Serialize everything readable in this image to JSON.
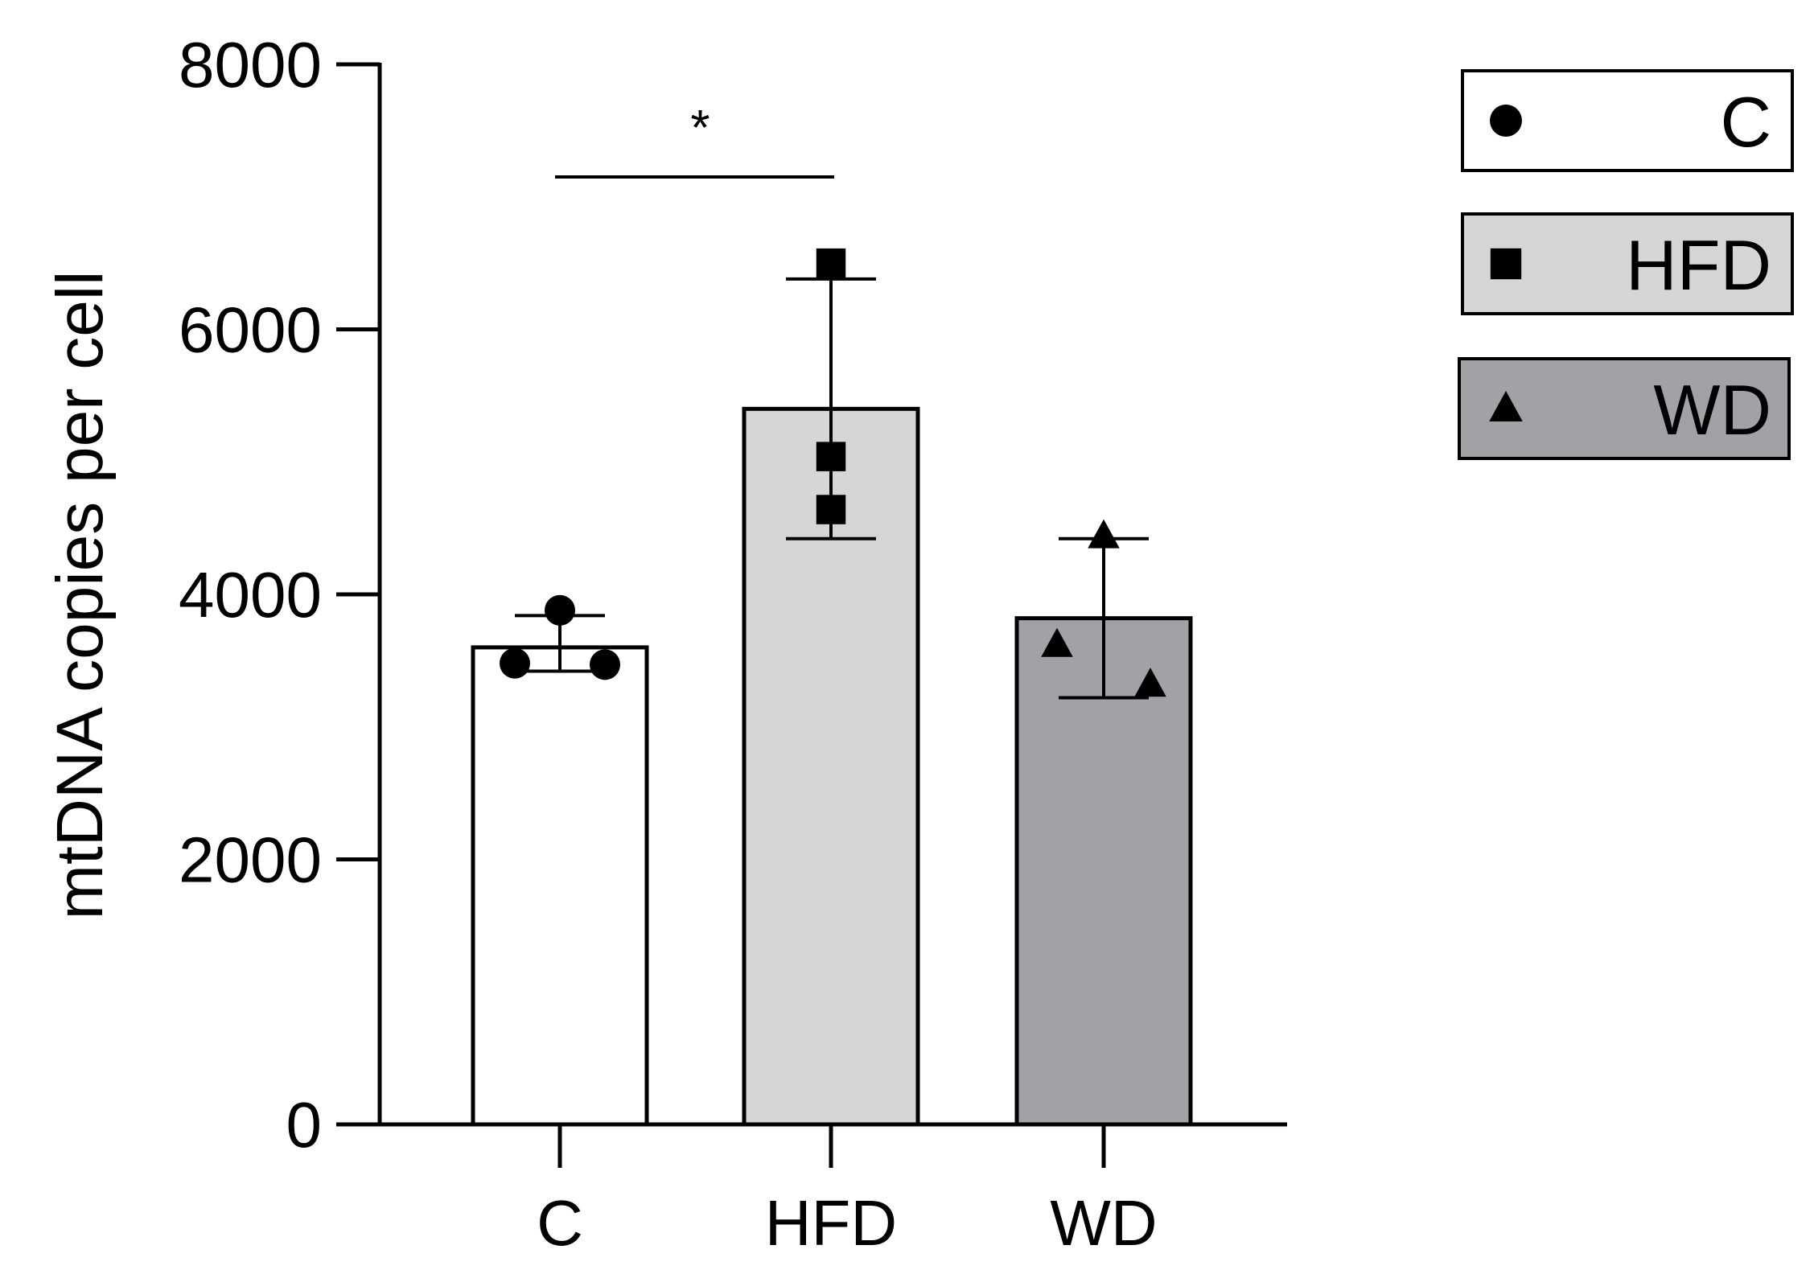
{
  "chart_data": {
    "type": "bar",
    "title": "",
    "xlabel": "",
    "ylabel": "mtDNA copies per cell",
    "ylim": [
      0,
      8000
    ],
    "yticks": [
      0,
      2000,
      4000,
      6000,
      8000
    ],
    "ytick_labels": [
      "0",
      "2000",
      "4000",
      "6000",
      "8000"
    ],
    "categories": [
      "C",
      "HFD",
      "WD"
    ],
    "values": [
      3600,
      5400,
      3820
    ],
    "error_low": [
      3420,
      4420,
      3220
    ],
    "error_high": [
      3840,
      6380,
      4420
    ],
    "points": [
      [
        3880,
        3480,
        3470
      ],
      [
        6500,
        5040,
        4640
      ],
      [
        4440,
        3620,
        3320
      ]
    ],
    "markers": [
      "circle",
      "square",
      "triangle"
    ],
    "colors": [
      "#ffffff",
      "#d6d6d6",
      "#a3a1a6"
    ],
    "significance": [
      {
        "from": "C",
        "to": "HFD",
        "y": 7150,
        "label": "*"
      }
    ],
    "legend": {
      "position": "top-right",
      "entries": [
        {
          "label": "C",
          "marker": "circle",
          "color": "#ffffff"
        },
        {
          "label": "HFD",
          "marker": "square",
          "color": "#d6d6d6"
        },
        {
          "label": "WD",
          "marker": "triangle",
          "color": "#a3a1a6"
        }
      ]
    }
  }
}
